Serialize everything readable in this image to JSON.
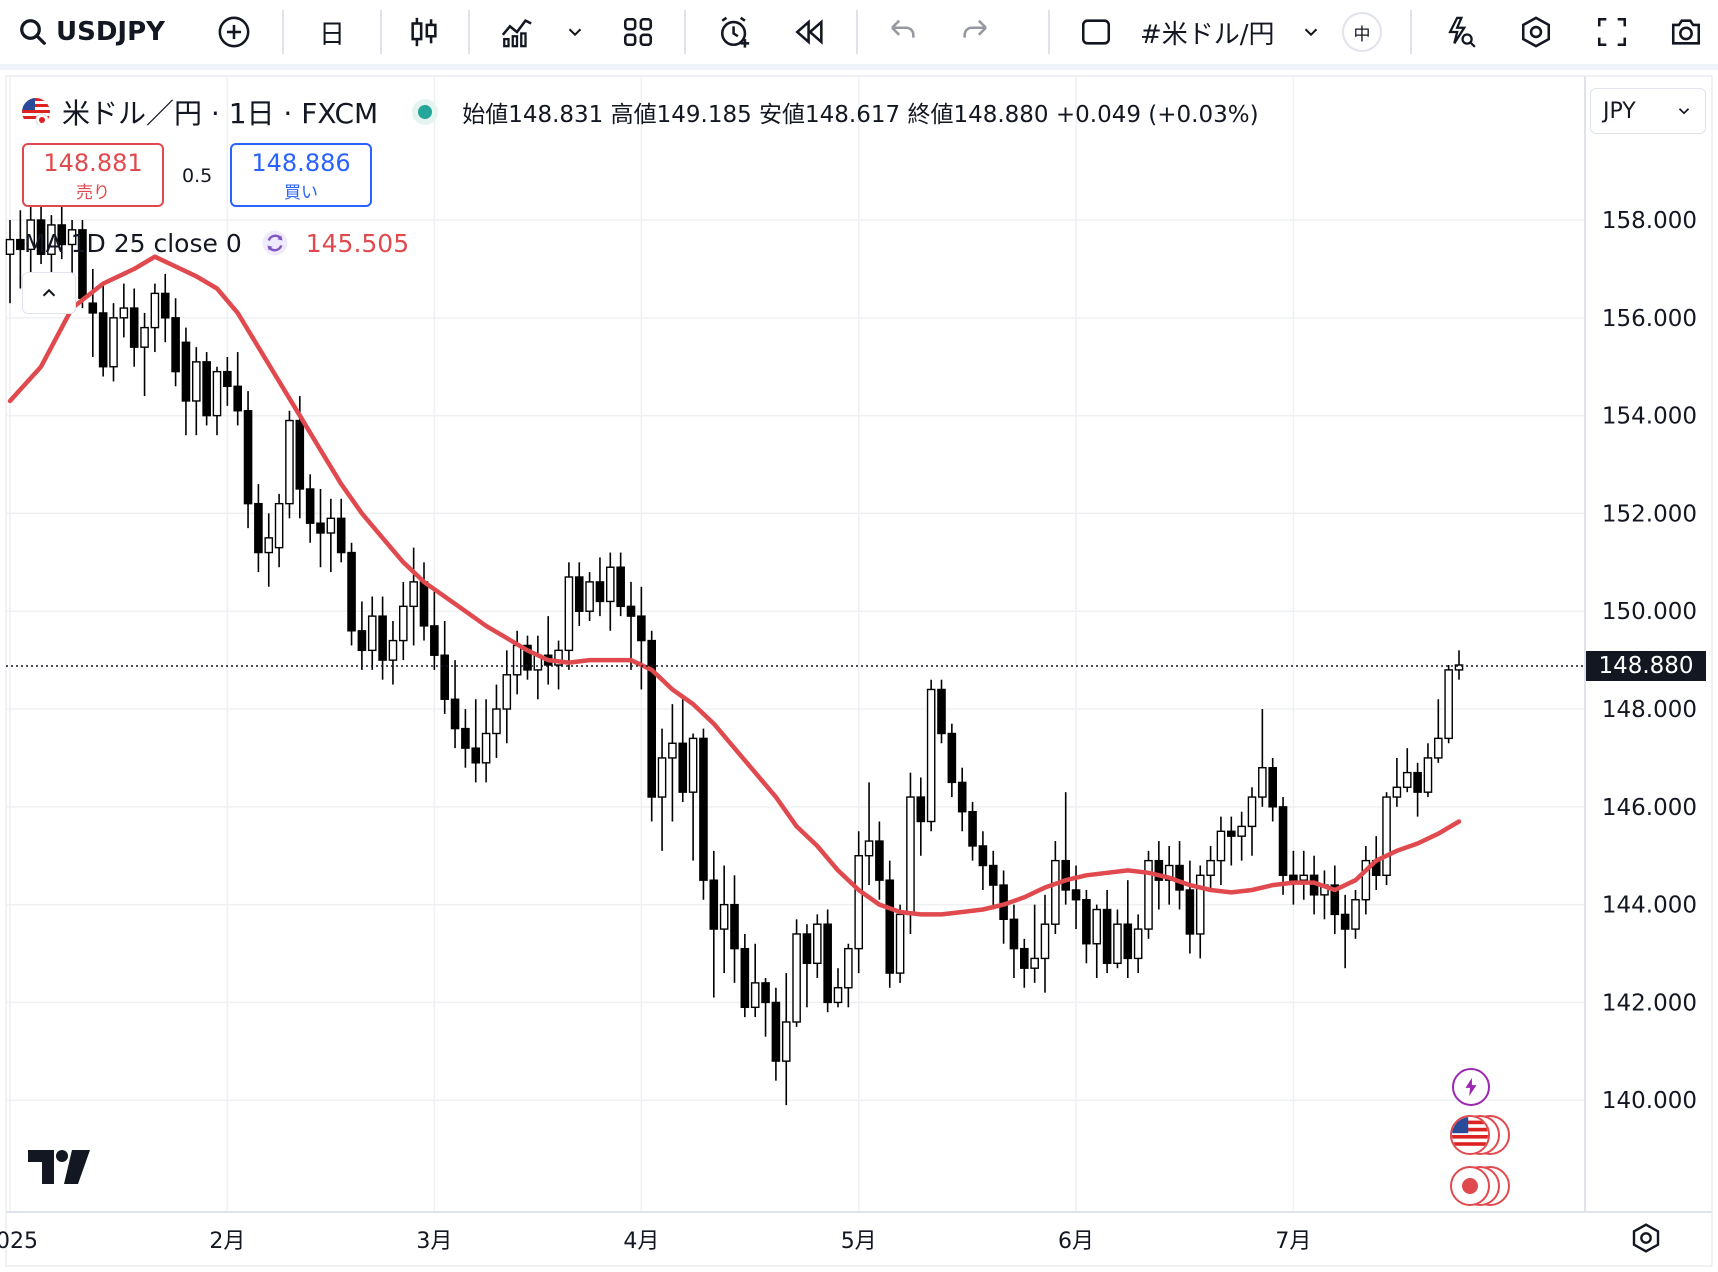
{
  "toolbar": {
    "symbol": "USDJPY",
    "interval": "日",
    "symbol_name": "#米ドル/円",
    "badge": "中"
  },
  "legend": {
    "title": "米ドル／円 · 1日 · FXCM",
    "ohlc_text": "始値148.831 高値149.185 安値148.617 終値148.880 +0.049 (+0.03%)"
  },
  "trade": {
    "sell_price": "148.881",
    "sell_label": "売り",
    "spread": "0.5",
    "buy_price": "148.886",
    "buy_label": "買い"
  },
  "indicator": {
    "label": "MA 1D 25 close 0",
    "value": "145.505"
  },
  "currency_selector": "JPY",
  "colors": {
    "ma_line": "#e04a4e",
    "candle_body_down": "#000000",
    "candle_body_up": "#ffffff",
    "grid": "#eef0f3"
  },
  "chart_data": {
    "type": "candlestick",
    "title": "",
    "xlabel": "",
    "ylabel": "",
    "ylim": [
      138.0,
      160.0
    ],
    "current_price": "148.880",
    "y_ticks": [
      "158.000",
      "156.000",
      "154.000",
      "152.000",
      "150.000",
      "148.000",
      "146.000",
      "144.000",
      "142.000",
      "140.000"
    ],
    "x_ticks": [
      {
        "label": "2025",
        "index": 0
      },
      {
        "label": "2月",
        "index": 21
      },
      {
        "label": "3月",
        "index": 41
      },
      {
        "label": "4月",
        "index": 61
      },
      {
        "label": "5月",
        "index": 82
      },
      {
        "label": "6月",
        "index": 103
      },
      {
        "label": "7月",
        "index": 124
      }
    ],
    "candles": [
      [
        157.3,
        158.0,
        156.3,
        157.6
      ],
      [
        157.6,
        158.2,
        156.6,
        157.4
      ],
      [
        157.4,
        158.4,
        156.9,
        158.0
      ],
      [
        158.0,
        158.5,
        157.1,
        157.3
      ],
      [
        157.3,
        158.1,
        156.7,
        157.9
      ],
      [
        157.9,
        158.3,
        157.2,
        157.5
      ],
      [
        157.5,
        158.0,
        156.4,
        157.8
      ],
      [
        157.8,
        158.0,
        156.2,
        156.4
      ],
      [
        156.3,
        157.0,
        155.2,
        156.1
      ],
      [
        156.1,
        156.7,
        154.8,
        155.0
      ],
      [
        155.0,
        156.3,
        154.7,
        156.0
      ],
      [
        156.0,
        156.7,
        155.6,
        156.2
      ],
      [
        156.2,
        156.6,
        155.0,
        155.4
      ],
      [
        155.4,
        156.1,
        154.4,
        155.8
      ],
      [
        155.8,
        156.7,
        155.3,
        156.5
      ],
      [
        156.5,
        156.9,
        155.5,
        156.0
      ],
      [
        156.0,
        156.4,
        154.6,
        154.9
      ],
      [
        155.5,
        155.8,
        153.6,
        154.3
      ],
      [
        154.3,
        155.4,
        153.6,
        155.1
      ],
      [
        155.1,
        155.3,
        153.8,
        154.0
      ],
      [
        154.0,
        155.0,
        153.6,
        154.9
      ],
      [
        154.9,
        155.2,
        154.2,
        154.6
      ],
      [
        154.6,
        155.3,
        153.8,
        154.1
      ],
      [
        154.1,
        154.5,
        151.7,
        152.2
      ],
      [
        152.2,
        152.6,
        150.8,
        151.2
      ],
      [
        151.2,
        152.0,
        150.5,
        151.5
      ],
      [
        151.3,
        152.4,
        150.9,
        152.2
      ],
      [
        152.2,
        154.1,
        151.9,
        153.9
      ],
      [
        153.9,
        154.4,
        151.9,
        152.5
      ],
      [
        152.5,
        152.8,
        151.4,
        151.8
      ],
      [
        151.8,
        152.5,
        150.9,
        151.6
      ],
      [
        151.6,
        152.3,
        150.8,
        151.9
      ],
      [
        151.9,
        152.3,
        151.0,
        151.2
      ],
      [
        151.2,
        151.4,
        149.3,
        149.6
      ],
      [
        149.6,
        150.2,
        148.8,
        149.2
      ],
      [
        149.2,
        150.3,
        148.8,
        149.9
      ],
      [
        149.9,
        150.3,
        148.6,
        149.0
      ],
      [
        149.0,
        149.8,
        148.5,
        149.4
      ],
      [
        149.4,
        150.6,
        149.0,
        150.1
      ],
      [
        150.1,
        151.3,
        149.3,
        150.6
      ],
      [
        150.6,
        151.0,
        149.4,
        149.7
      ],
      [
        149.7,
        150.4,
        148.8,
        149.1
      ],
      [
        149.1,
        149.8,
        147.9,
        148.2
      ],
      [
        148.2,
        149.0,
        147.2,
        147.6
      ],
      [
        147.6,
        148.0,
        146.8,
        147.2
      ],
      [
        147.2,
        148.2,
        146.5,
        146.9
      ],
      [
        146.9,
        148.2,
        146.5,
        147.5
      ],
      [
        147.5,
        148.5,
        147.0,
        148.0
      ],
      [
        148.0,
        149.2,
        147.3,
        148.7
      ],
      [
        148.7,
        149.6,
        148.3,
        149.3
      ],
      [
        149.3,
        149.5,
        148.6,
        148.8
      ],
      [
        148.8,
        149.5,
        148.2,
        149.1
      ],
      [
        149.1,
        149.9,
        148.5,
        148.9
      ],
      [
        148.9,
        149.4,
        148.4,
        149.2
      ],
      [
        149.2,
        151.0,
        148.8,
        150.7
      ],
      [
        150.7,
        151.0,
        149.7,
        150.0
      ],
      [
        150.0,
        150.8,
        149.8,
        150.6
      ],
      [
        150.6,
        151.1,
        149.9,
        150.2
      ],
      [
        150.2,
        151.2,
        149.6,
        150.9
      ],
      [
        150.9,
        151.2,
        149.9,
        150.1
      ],
      [
        150.1,
        150.6,
        148.8,
        149.9
      ],
      [
        149.9,
        150.5,
        148.4,
        149.4
      ],
      [
        149.4,
        149.6,
        145.7,
        146.2
      ],
      [
        146.2,
        147.6,
        145.1,
        147.0
      ],
      [
        147.0,
        148.1,
        145.7,
        147.3
      ],
      [
        147.3,
        148.2,
        146.1,
        146.3
      ],
      [
        146.3,
        147.5,
        144.9,
        147.4
      ],
      [
        147.4,
        147.6,
        144.1,
        144.5
      ],
      [
        144.5,
        145.1,
        142.1,
        143.5
      ],
      [
        143.5,
        144.8,
        142.6,
        144.0
      ],
      [
        144.0,
        144.6,
        142.4,
        143.1
      ],
      [
        143.1,
        143.4,
        141.7,
        141.9
      ],
      [
        141.9,
        143.2,
        141.7,
        142.4
      ],
      [
        142.4,
        142.5,
        141.3,
        142.0
      ],
      [
        142.0,
        142.3,
        140.4,
        140.8
      ],
      [
        140.8,
        142.6,
        139.9,
        141.6
      ],
      [
        141.6,
        143.7,
        141.5,
        143.4
      ],
      [
        143.4,
        143.6,
        141.9,
        142.8
      ],
      [
        142.8,
        143.8,
        142.5,
        143.6
      ],
      [
        143.6,
        143.9,
        141.8,
        142.0
      ],
      [
        142.0,
        142.7,
        141.9,
        142.3
      ],
      [
        142.3,
        143.2,
        141.9,
        143.1
      ],
      [
        143.1,
        145.5,
        142.6,
        145.0
      ],
      [
        145.0,
        146.5,
        144.4,
        145.3
      ],
      [
        145.3,
        145.7,
        144.1,
        144.5
      ],
      [
        144.5,
        144.9,
        142.3,
        142.6
      ],
      [
        142.6,
        144.0,
        142.4,
        143.8
      ],
      [
        143.8,
        146.7,
        143.4,
        146.2
      ],
      [
        146.2,
        146.6,
        145.0,
        145.7
      ],
      [
        145.7,
        148.6,
        145.5,
        148.4
      ],
      [
        148.4,
        148.6,
        147.3,
        147.5
      ],
      [
        147.5,
        147.7,
        146.2,
        146.5
      ],
      [
        146.5,
        146.8,
        145.5,
        145.9
      ],
      [
        145.9,
        146.1,
        144.9,
        145.2
      ],
      [
        145.2,
        145.5,
        144.3,
        144.8
      ],
      [
        144.8,
        145.1,
        143.9,
        144.4
      ],
      [
        144.4,
        144.7,
        143.2,
        143.7
      ],
      [
        143.7,
        144.0,
        142.5,
        143.1
      ],
      [
        143.1,
        143.3,
        142.3,
        142.7
      ],
      [
        142.7,
        144.0,
        142.4,
        142.9
      ],
      [
        142.9,
        144.2,
        142.2,
        143.6
      ],
      [
        143.6,
        145.3,
        143.4,
        144.9
      ],
      [
        144.9,
        146.3,
        144.0,
        144.3
      ],
      [
        144.3,
        144.8,
        143.5,
        144.1
      ],
      [
        144.1,
        144.3,
        142.8,
        143.2
      ],
      [
        143.2,
        144.0,
        142.5,
        143.9
      ],
      [
        143.9,
        144.3,
        142.6,
        142.8
      ],
      [
        142.8,
        143.9,
        142.7,
        143.6
      ],
      [
        143.6,
        144.5,
        142.5,
        142.9
      ],
      [
        142.9,
        143.8,
        142.6,
        143.5
      ],
      [
        143.5,
        145.1,
        143.3,
        144.9
      ],
      [
        144.9,
        145.3,
        143.9,
        144.5
      ],
      [
        144.5,
        145.2,
        144.0,
        144.8
      ],
      [
        144.8,
        145.3,
        143.9,
        144.3
      ],
      [
        144.3,
        144.9,
        143.0,
        143.4
      ],
      [
        143.4,
        144.8,
        142.9,
        144.6
      ],
      [
        144.6,
        145.2,
        144.3,
        144.9
      ],
      [
        144.9,
        145.8,
        144.4,
        145.5
      ],
      [
        145.5,
        145.8,
        144.8,
        145.4
      ],
      [
        145.4,
        145.9,
        144.9,
        145.6
      ],
      [
        145.6,
        146.4,
        145.0,
        146.2
      ],
      [
        146.2,
        148.0,
        146.0,
        146.8
      ],
      [
        146.8,
        147.0,
        145.7,
        146.0
      ],
      [
        146.0,
        146.2,
        144.2,
        144.6
      ],
      [
        144.6,
        145.1,
        144.0,
        144.5
      ],
      [
        144.5,
        145.1,
        144.1,
        144.6
      ],
      [
        144.6,
        145.0,
        143.8,
        144.2
      ],
      [
        144.2,
        144.7,
        143.7,
        144.4
      ],
      [
        144.4,
        144.8,
        143.4,
        143.8
      ],
      [
        143.8,
        144.2,
        142.7,
        143.5
      ],
      [
        143.5,
        144.3,
        143.3,
        144.1
      ],
      [
        144.1,
        145.2,
        143.8,
        144.9
      ],
      [
        144.9,
        145.4,
        144.3,
        144.6
      ],
      [
        144.6,
        146.3,
        144.4,
        146.2
      ],
      [
        146.2,
        147.0,
        146.0,
        146.4
      ],
      [
        146.4,
        147.2,
        146.3,
        146.7
      ],
      [
        146.7,
        146.9,
        145.8,
        146.3
      ],
      [
        146.3,
        147.3,
        146.2,
        147.0
      ],
      [
        147.0,
        148.2,
        146.9,
        147.4
      ],
      [
        147.4,
        148.9,
        147.3,
        148.8
      ],
      [
        148.8,
        149.2,
        148.6,
        148.9
      ]
    ],
    "ma_series": {
      "name": "MA 1D 25 close 0",
      "values": [
        [
          0,
          154.3
        ],
        [
          3,
          155.0
        ],
        [
          6,
          156.2
        ],
        [
          9,
          156.7
        ],
        [
          12,
          157.0
        ],
        [
          14,
          157.25
        ],
        [
          16,
          157.05
        ],
        [
          18,
          156.85
        ],
        [
          20,
          156.6
        ],
        [
          22,
          156.1
        ],
        [
          24,
          155.4
        ],
        [
          26,
          154.7
        ],
        [
          28,
          154.0
        ],
        [
          30,
          153.3
        ],
        [
          32,
          152.6
        ],
        [
          34,
          152.0
        ],
        [
          36,
          151.5
        ],
        [
          38,
          151.0
        ],
        [
          40,
          150.6
        ],
        [
          42,
          150.3
        ],
        [
          44,
          150.0
        ],
        [
          46,
          149.7
        ],
        [
          48,
          149.45
        ],
        [
          50,
          149.2
        ],
        [
          52,
          149.0
        ],
        [
          54,
          148.95
        ],
        [
          56,
          149.0
        ],
        [
          58,
          149.0
        ],
        [
          60,
          149.0
        ],
        [
          62,
          148.8
        ],
        [
          64,
          148.4
        ],
        [
          66,
          148.1
        ],
        [
          68,
          147.7
        ],
        [
          70,
          147.2
        ],
        [
          72,
          146.7
        ],
        [
          74,
          146.2
        ],
        [
          76,
          145.6
        ],
        [
          78,
          145.2
        ],
        [
          80,
          144.7
        ],
        [
          82,
          144.3
        ],
        [
          84,
          144.0
        ],
        [
          86,
          143.85
        ],
        [
          88,
          143.8
        ],
        [
          90,
          143.8
        ],
        [
          92,
          143.85
        ],
        [
          94,
          143.9
        ],
        [
          96,
          144.0
        ],
        [
          98,
          144.15
        ],
        [
          100,
          144.35
        ],
        [
          102,
          144.5
        ],
        [
          104,
          144.6
        ],
        [
          106,
          144.65
        ],
        [
          108,
          144.7
        ],
        [
          110,
          144.65
        ],
        [
          112,
          144.55
        ],
        [
          114,
          144.4
        ],
        [
          116,
          144.3
        ],
        [
          118,
          144.25
        ],
        [
          120,
          144.3
        ],
        [
          122,
          144.4
        ],
        [
          124,
          144.45
        ],
        [
          126,
          144.45
        ],
        [
          128,
          144.3
        ],
        [
          130,
          144.5
        ],
        [
          132,
          144.9
        ],
        [
          134,
          145.1
        ],
        [
          136,
          145.25
        ],
        [
          138,
          145.45
        ],
        [
          140,
          145.7
        ]
      ]
    }
  }
}
